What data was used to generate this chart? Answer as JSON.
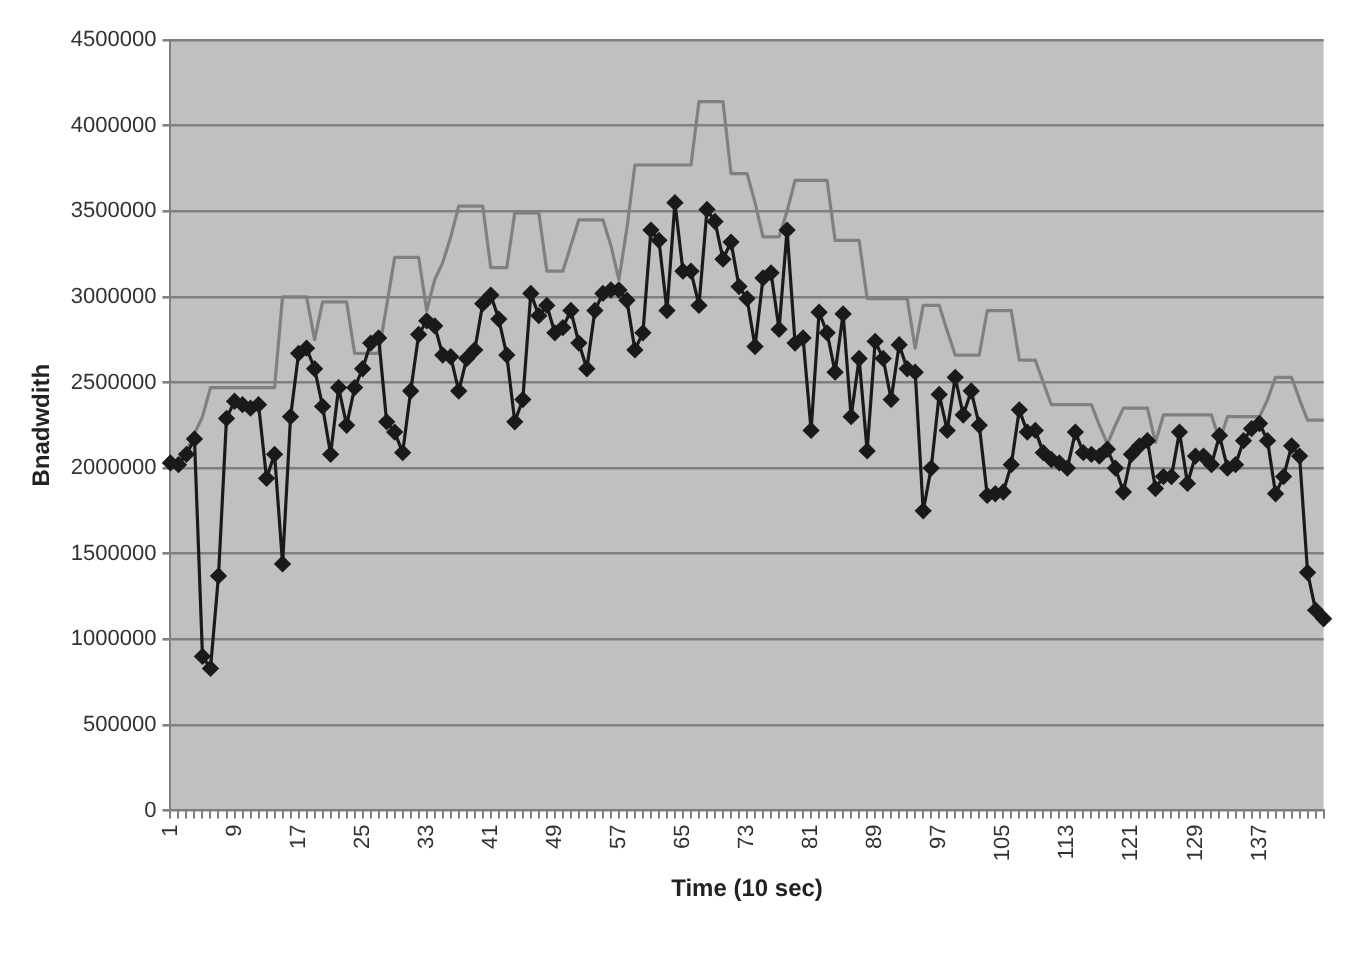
{
  "chart_data": {
    "type": "line",
    "xlabel": "Time (10 sec)",
    "ylabel": "Bnadwdith",
    "categories": [
      "1",
      null,
      null,
      null,
      null,
      null,
      null,
      null,
      "9",
      null,
      null,
      null,
      null,
      null,
      null,
      null,
      "17",
      null,
      null,
      null,
      null,
      null,
      null,
      null,
      "25",
      null,
      null,
      null,
      null,
      null,
      null,
      null,
      "33",
      null,
      null,
      null,
      null,
      null,
      null,
      null,
      "41",
      null,
      null,
      null,
      null,
      null,
      null,
      null,
      "49",
      null,
      null,
      null,
      null,
      null,
      null,
      null,
      "57",
      null,
      null,
      null,
      null,
      null,
      null,
      null,
      "65",
      null,
      null,
      null,
      null,
      null,
      null,
      null,
      "73",
      null,
      null,
      null,
      null,
      null,
      null,
      null,
      "81",
      null,
      null,
      null,
      null,
      null,
      null,
      null,
      "89",
      null,
      null,
      null,
      null,
      null,
      null,
      null,
      "97",
      null,
      null,
      null,
      null,
      null,
      null,
      null,
      "105",
      null,
      null,
      null,
      null,
      null,
      null,
      null,
      "113",
      null,
      null,
      null,
      null,
      null,
      null,
      null,
      "121",
      null,
      null,
      null,
      null,
      null,
      null,
      null,
      "129",
      null,
      null,
      null,
      null,
      null,
      null,
      null,
      "137",
      null,
      null,
      null,
      null,
      null,
      null,
      null,
      null
    ],
    "series": [
      {
        "color": "#808080",
        "marker": "none",
        "values": [
          2000000,
          2050000,
          2100000,
          2200000,
          2300000,
          2470000,
          2470000,
          2470000,
          2470000,
          2470000,
          2470000,
          2470000,
          2470000,
          2470000,
          3000000,
          3000000,
          3000000,
          3000000,
          2750000,
          2970000,
          2970000,
          2970000,
          2970000,
          2670000,
          2670000,
          2670000,
          2670000,
          2950000,
          3230000,
          3230000,
          3230000,
          3230000,
          2920000,
          3100000,
          3200000,
          3350000,
          3530000,
          3530000,
          3530000,
          3530000,
          3170000,
          3170000,
          3170000,
          3490000,
          3490000,
          3490000,
          3490000,
          3150000,
          3150000,
          3150000,
          3300000,
          3450000,
          3450000,
          3450000,
          3450000,
          3300000,
          3100000,
          3400000,
          3770000,
          3770000,
          3770000,
          3770000,
          3770000,
          3770000,
          3770000,
          3770000,
          4140000,
          4140000,
          4140000,
          4140000,
          3720000,
          3720000,
          3720000,
          3550000,
          3350000,
          3350000,
          3350000,
          3500000,
          3680000,
          3680000,
          3680000,
          3680000,
          3680000,
          3330000,
          3330000,
          3330000,
          3330000,
          2990000,
          2990000,
          2990000,
          2990000,
          2990000,
          2990000,
          2700000,
          2950000,
          2950000,
          2950000,
          2800000,
          2660000,
          2660000,
          2660000,
          2660000,
          2920000,
          2920000,
          2920000,
          2920000,
          2630000,
          2630000,
          2630000,
          2500000,
          2370000,
          2370000,
          2370000,
          2370000,
          2370000,
          2370000,
          2250000,
          2140000,
          2250000,
          2350000,
          2350000,
          2350000,
          2350000,
          2150000,
          2310000,
          2310000,
          2310000,
          2310000,
          2310000,
          2310000,
          2310000,
          2160000,
          2300000,
          2300000,
          2300000,
          2300000,
          2300000,
          2400000,
          2530000,
          2530000,
          2530000,
          2400000,
          2280000,
          2280000,
          2280000
        ]
      },
      {
        "color": "#1a1a1a",
        "marker": "diamond",
        "values": [
          2030000,
          2020000,
          2080000,
          2170000,
          900000,
          830000,
          1370000,
          2290000,
          2390000,
          2370000,
          2350000,
          2370000,
          1940000,
          2080000,
          1440000,
          2300000,
          2670000,
          2700000,
          2580000,
          2360000,
          2080000,
          2470000,
          2250000,
          2470000,
          2580000,
          2730000,
          2760000,
          2270000,
          2210000,
          2090000,
          2450000,
          2780000,
          2860000,
          2830000,
          2660000,
          2650000,
          2450000,
          2640000,
          2690000,
          2960000,
          3010000,
          2870000,
          2660000,
          2270000,
          2400000,
          3020000,
          2890000,
          2950000,
          2790000,
          2820000,
          2920000,
          2730000,
          2580000,
          2920000,
          3020000,
          3040000,
          3040000,
          2980000,
          2690000,
          2790000,
          3390000,
          3330000,
          2920000,
          3550000,
          3150000,
          3150000,
          2950000,
          3510000,
          3440000,
          3220000,
          3320000,
          3060000,
          2990000,
          2710000,
          3110000,
          3140000,
          2810000,
          3390000,
          2730000,
          2760000,
          2220000,
          2910000,
          2790000,
          2560000,
          2900000,
          2300000,
          2640000,
          2100000,
          2740000,
          2640000,
          2400000,
          2720000,
          2580000,
          2560000,
          1750000,
          2000000,
          2430000,
          2220000,
          2530000,
          2310000,
          2450000,
          2250000,
          1840000,
          1850000,
          1860000,
          2020000,
          2340000,
          2210000,
          2220000,
          2090000,
          2050000,
          2030000,
          2000000,
          2210000,
          2090000,
          2080000,
          2070000,
          2110000,
          2000000,
          1860000,
          2080000,
          2130000,
          2160000,
          1880000,
          1950000,
          1950000,
          2210000,
          1910000,
          2070000,
          2070000,
          2020000,
          2190000,
          2000000,
          2020000,
          2160000,
          2230000,
          2260000,
          2160000,
          1850000,
          1950000,
          2130000,
          2070000,
          1390000,
          1170000,
          1120000
        ]
      }
    ],
    "ylim": [
      0,
      4500000
    ],
    "yticks": [
      0,
      500000,
      1000000,
      1500000,
      2000000,
      2500000,
      3000000,
      3500000,
      4000000,
      4500000
    ],
    "grid": "y",
    "legend": false
  }
}
